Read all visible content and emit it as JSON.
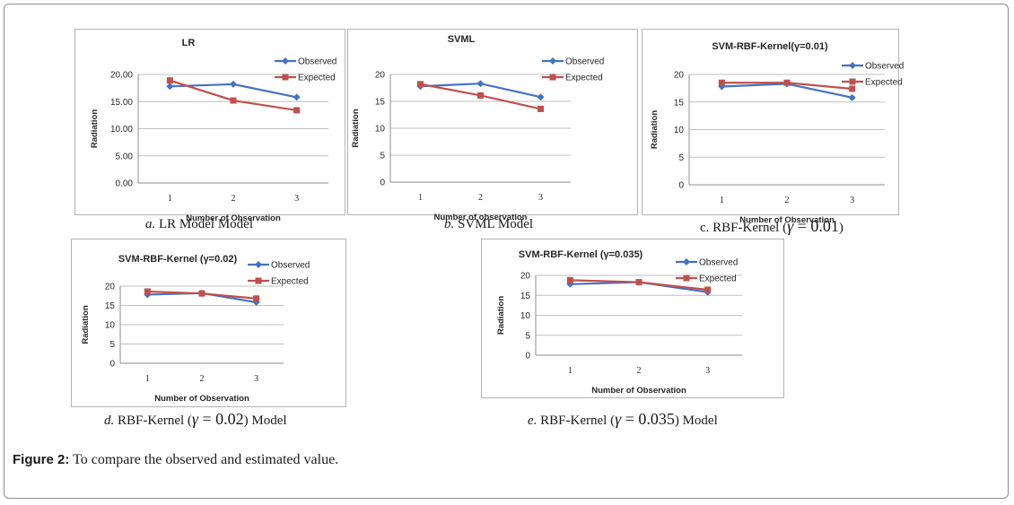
{
  "figure": {
    "label": "Figure 2:",
    "text": "To compare the observed and estimated value."
  },
  "captions": [
    {
      "prefix": "a.",
      "rest": "LR Model Model"
    },
    {
      "prefix": "b.",
      "rest": "SVML Model"
    },
    {
      "prefix": "c.",
      "open": "RBF-Kernel (",
      "gamma": "γ",
      "eq": " = 0.01",
      "close": ")",
      "suffix": ""
    },
    {
      "prefix": "d.",
      "open": "RBF-Kernel (",
      "gamma": "γ",
      "eq": " = 0.02",
      "close": ")",
      "suffix": " Model"
    },
    {
      "prefix": "e.",
      "open": "RBF-Kernel (",
      "gamma": "γ",
      "eq": " = 0.035",
      "close": ")",
      "suffix": " Model"
    }
  ],
  "colors": {
    "observed": "#4472c4",
    "expected": "#c0504d",
    "grid": "#bfbfbf",
    "text": "#262626"
  },
  "chart_data": [
    {
      "type": "line",
      "title": "LR",
      "xlabel": "Number of Observation",
      "ylabel": "Radiation",
      "categories": [
        "1",
        "2",
        "3"
      ],
      "ylim": [
        0,
        20
      ],
      "yticks": [
        "0.00",
        "5.00",
        "10.00",
        "15.00",
        "20.00"
      ],
      "series": [
        {
          "name": "Observed",
          "values": [
            17.8,
            18.2,
            15.8
          ]
        },
        {
          "name": "Expected",
          "values": [
            18.9,
            15.2,
            13.4
          ]
        }
      ],
      "grid": true,
      "legend": "top-right"
    },
    {
      "type": "line",
      "title": "SVML",
      "xlabel": "Number of observation",
      "ylabel": "Radiation",
      "categories": [
        "1",
        "2",
        "3"
      ],
      "ylim": [
        0,
        20
      ],
      "yticks": [
        "0",
        "5",
        "10",
        "15",
        "20"
      ],
      "series": [
        {
          "name": "Observed",
          "values": [
            17.8,
            18.3,
            15.8
          ]
        },
        {
          "name": "Expected",
          "values": [
            18.2,
            16.1,
            13.6
          ]
        }
      ],
      "grid": true,
      "legend": "top-right"
    },
    {
      "type": "line",
      "title": "SVM-RBF-Kernel(γ=0.01)",
      "xlabel": "Number of Observation",
      "ylabel": "Radiation",
      "categories": [
        "1",
        "2",
        "3"
      ],
      "ylim": [
        0,
        20
      ],
      "yticks": [
        "0",
        "5",
        "10",
        "15",
        "20"
      ],
      "series": [
        {
          "name": "Observed",
          "values": [
            17.8,
            18.3,
            15.8
          ]
        },
        {
          "name": "Expected",
          "values": [
            18.5,
            18.5,
            17.4
          ]
        }
      ],
      "grid": true,
      "legend": "top-right"
    },
    {
      "type": "line",
      "title": "SVM-RBF-Kernel (γ=0.02)",
      "xlabel": "Number of Observation",
      "ylabel": "Radiation",
      "categories": [
        "1",
        "2",
        "3"
      ],
      "ylim": [
        0,
        20
      ],
      "yticks": [
        "0",
        "5",
        "10",
        "15",
        "20"
      ],
      "series": [
        {
          "name": "Observed",
          "values": [
            17.8,
            18.2,
            15.8
          ]
        },
        {
          "name": "Expected",
          "values": [
            18.6,
            18.1,
            16.8
          ]
        }
      ],
      "grid": true,
      "legend": "top-right"
    },
    {
      "type": "line",
      "title": "SVM-RBF-Kernel (γ=0.035)",
      "xlabel": "Number of Observation",
      "ylabel": "Radiation",
      "categories": [
        "1",
        "2",
        "3"
      ],
      "ylim": [
        0,
        20
      ],
      "yticks": [
        "0",
        "5",
        "10",
        "15",
        "20"
      ],
      "series": [
        {
          "name": "Observed",
          "values": [
            17.8,
            18.3,
            15.8
          ]
        },
        {
          "name": "Expected",
          "values": [
            18.8,
            18.3,
            16.4
          ]
        }
      ],
      "grid": true,
      "legend": "top-right"
    }
  ]
}
